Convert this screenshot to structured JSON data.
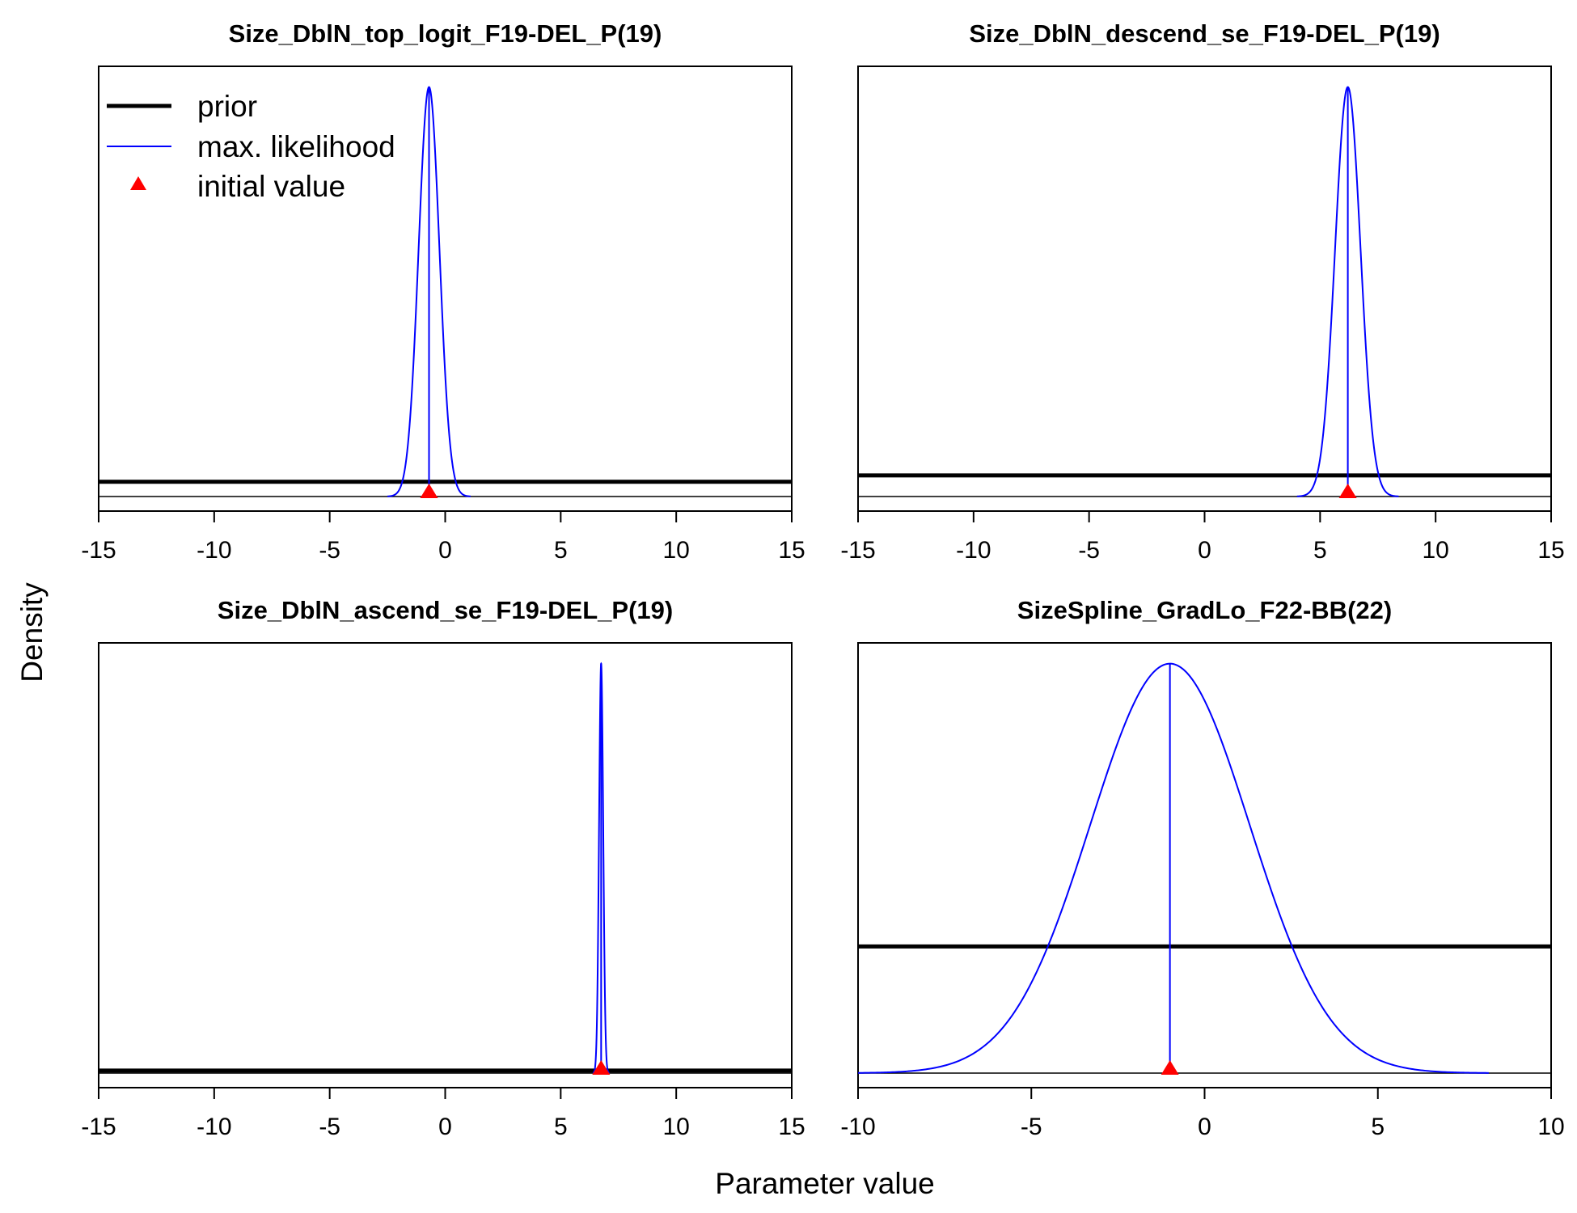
{
  "figure": {
    "xlabel": "Parameter value",
    "ylabel": "Density"
  },
  "legend": {
    "placement": "top-left of first panel",
    "items": [
      {
        "label": "prior",
        "color": "#000000",
        "symbol": "thick-line"
      },
      {
        "label": "max. likelihood",
        "color": "#0000ff",
        "symbol": "thin-line"
      },
      {
        "label": "initial value",
        "color": "#ff0000",
        "symbol": "triangle"
      }
    ]
  },
  "colors": {
    "prior": "#000000",
    "mle": "#0000ff",
    "initial": "#ff0000"
  },
  "chart_data": [
    {
      "type": "line",
      "title": "Size_DblN_top_logit_F19-DEL_P(19)",
      "xlim": [
        -15,
        15
      ],
      "xticks": [
        -15,
        -10,
        -5,
        0,
        5,
        10,
        15
      ],
      "ylim": [
        0,
        1.0
      ],
      "prior_level": 0.035,
      "mle": {
        "mean": -0.7,
        "sd": 0.45,
        "peak": 0.97
      },
      "initial_value": -0.7
    },
    {
      "type": "line",
      "title": "Size_DblN_descend_se_F19-DEL_P(19)",
      "xlim": [
        -15,
        15
      ],
      "xticks": [
        -15,
        -10,
        -5,
        0,
        5,
        10,
        15
      ],
      "ylim": [
        0,
        1.0
      ],
      "prior_level": 0.05,
      "mle": {
        "mean": 6.2,
        "sd": 0.55,
        "peak": 0.97
      },
      "initial_value": 6.2
    },
    {
      "type": "line",
      "title": "Size_DblN_ascend_se_F19-DEL_P(19)",
      "xlim": [
        -15,
        15
      ],
      "xticks": [
        -15,
        -10,
        -5,
        0,
        5,
        10,
        15
      ],
      "ylim": [
        0,
        1.0
      ],
      "prior_level": 0.006,
      "mle": {
        "mean": 6.75,
        "sd": 0.09,
        "peak": 0.97
      },
      "initial_value": 6.75
    },
    {
      "type": "line",
      "title": "SizeSpline_GradLo_F22-BB(22)",
      "xlim": [
        -10,
        10
      ],
      "xticks": [
        -10,
        -5,
        0,
        5,
        10
      ],
      "ylim": [
        0,
        1.0
      ],
      "prior_level": 0.3,
      "mle": {
        "mean": -1.0,
        "sd": 2.3,
        "peak": 0.97
      },
      "initial_value": -1.0
    }
  ]
}
